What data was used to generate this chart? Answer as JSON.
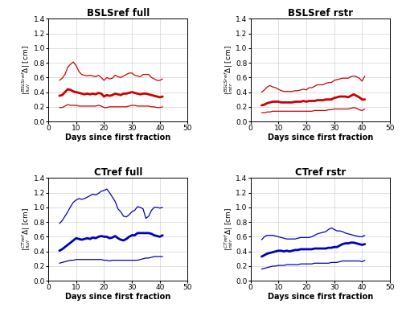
{
  "titles": [
    "BSLSref full",
    "BSLSref rstr",
    "CTref full",
    "CTref rstr"
  ],
  "xlabel": "Days since first fraction",
  "xlim": [
    0,
    50
  ],
  "ylim": [
    0,
    1.4
  ],
  "yticks": [
    0,
    0.2,
    0.4,
    0.6,
    0.8,
    1.0,
    1.2,
    1.4
  ],
  "xticks": [
    0,
    10,
    20,
    30,
    40,
    50
  ],
  "line_color_red": "#cc0000",
  "line_color_blue": "#0000bb",
  "background": "#ffffff",
  "grid_color": "#bbbbbb",
  "bsls_full_x": [
    4,
    5,
    6,
    7,
    8,
    9,
    10,
    11,
    12,
    13,
    14,
    15,
    16,
    17,
    18,
    19,
    20,
    21,
    22,
    23,
    24,
    25,
    26,
    27,
    28,
    29,
    30,
    31,
    32,
    33,
    34,
    35,
    36,
    37,
    38,
    39,
    40,
    41
  ],
  "bsls_full_median": [
    0.35,
    0.36,
    0.4,
    0.44,
    0.43,
    0.41,
    0.4,
    0.39,
    0.38,
    0.37,
    0.38,
    0.37,
    0.38,
    0.37,
    0.39,
    0.38,
    0.34,
    0.36,
    0.35,
    0.36,
    0.38,
    0.37,
    0.36,
    0.38,
    0.38,
    0.39,
    0.4,
    0.39,
    0.38,
    0.37,
    0.38,
    0.38,
    0.37,
    0.36,
    0.35,
    0.34,
    0.33,
    0.34
  ],
  "bsls_full_upper": [
    0.56,
    0.59,
    0.64,
    0.74,
    0.78,
    0.81,
    0.76,
    0.68,
    0.64,
    0.63,
    0.62,
    0.63,
    0.62,
    0.61,
    0.63,
    0.6,
    0.56,
    0.6,
    0.58,
    0.59,
    0.63,
    0.61,
    0.6,
    0.62,
    0.64,
    0.66,
    0.66,
    0.63,
    0.62,
    0.61,
    0.64,
    0.64,
    0.64,
    0.6,
    0.58,
    0.56,
    0.56,
    0.58
  ],
  "bsls_full_lower": [
    0.19,
    0.19,
    0.21,
    0.23,
    0.22,
    0.22,
    0.22,
    0.21,
    0.21,
    0.21,
    0.21,
    0.21,
    0.21,
    0.21,
    0.22,
    0.21,
    0.19,
    0.19,
    0.2,
    0.2,
    0.2,
    0.2,
    0.2,
    0.2,
    0.2,
    0.21,
    0.22,
    0.22,
    0.21,
    0.21,
    0.21,
    0.21,
    0.21,
    0.2,
    0.2,
    0.19,
    0.19,
    0.2
  ],
  "bsls_rstr_x": [
    4,
    5,
    6,
    7,
    8,
    9,
    10,
    11,
    12,
    13,
    14,
    15,
    16,
    17,
    18,
    19,
    20,
    21,
    22,
    23,
    24,
    25,
    26,
    27,
    28,
    29,
    30,
    31,
    32,
    33,
    34,
    35,
    36,
    37,
    38,
    39,
    40,
    41
  ],
  "bsls_rstr_median": [
    0.22,
    0.23,
    0.25,
    0.26,
    0.27,
    0.27,
    0.27,
    0.26,
    0.26,
    0.26,
    0.26,
    0.26,
    0.27,
    0.27,
    0.27,
    0.28,
    0.27,
    0.28,
    0.28,
    0.28,
    0.29,
    0.29,
    0.29,
    0.3,
    0.3,
    0.3,
    0.32,
    0.33,
    0.34,
    0.34,
    0.34,
    0.33,
    0.35,
    0.37,
    0.35,
    0.33,
    0.3,
    0.3
  ],
  "bsls_rstr_upper": [
    0.4,
    0.43,
    0.47,
    0.49,
    0.47,
    0.46,
    0.44,
    0.42,
    0.41,
    0.41,
    0.41,
    0.41,
    0.42,
    0.42,
    0.43,
    0.44,
    0.43,
    0.46,
    0.46,
    0.48,
    0.5,
    0.5,
    0.5,
    0.52,
    0.53,
    0.53,
    0.56,
    0.57,
    0.58,
    0.59,
    0.59,
    0.59,
    0.61,
    0.62,
    0.61,
    0.59,
    0.55,
    0.62
  ],
  "bsls_rstr_lower": [
    0.12,
    0.12,
    0.13,
    0.13,
    0.14,
    0.14,
    0.14,
    0.14,
    0.14,
    0.14,
    0.14,
    0.14,
    0.14,
    0.14,
    0.14,
    0.14,
    0.14,
    0.14,
    0.14,
    0.15,
    0.15,
    0.15,
    0.15,
    0.15,
    0.16,
    0.16,
    0.17,
    0.17,
    0.17,
    0.17,
    0.17,
    0.17,
    0.18,
    0.19,
    0.18,
    0.16,
    0.15,
    0.17
  ],
  "ct_full_x": [
    4,
    5,
    6,
    7,
    8,
    9,
    10,
    11,
    12,
    13,
    14,
    15,
    16,
    17,
    18,
    19,
    20,
    21,
    22,
    23,
    24,
    25,
    26,
    27,
    28,
    29,
    30,
    31,
    32,
    33,
    34,
    35,
    36,
    37,
    38,
    39,
    40,
    41
  ],
  "ct_full_median": [
    0.41,
    0.43,
    0.46,
    0.49,
    0.52,
    0.55,
    0.58,
    0.57,
    0.56,
    0.57,
    0.58,
    0.57,
    0.59,
    0.58,
    0.6,
    0.61,
    0.6,
    0.6,
    0.58,
    0.59,
    0.61,
    0.58,
    0.56,
    0.55,
    0.57,
    0.6,
    0.62,
    0.62,
    0.65,
    0.65,
    0.65,
    0.65,
    0.65,
    0.64,
    0.62,
    0.61,
    0.6,
    0.62
  ],
  "ct_full_upper": [
    0.78,
    0.82,
    0.88,
    0.94,
    1.01,
    1.07,
    1.1,
    1.12,
    1.11,
    1.12,
    1.14,
    1.16,
    1.18,
    1.17,
    1.19,
    1.22,
    1.23,
    1.25,
    1.2,
    1.14,
    1.08,
    0.98,
    0.94,
    0.88,
    0.87,
    0.9,
    0.94,
    0.96,
    1.01,
    1.0,
    0.98,
    0.85,
    0.88,
    0.96,
    1.0,
    1.0,
    0.99,
    1.0
  ],
  "ct_full_lower": [
    0.24,
    0.25,
    0.26,
    0.27,
    0.28,
    0.28,
    0.29,
    0.29,
    0.29,
    0.29,
    0.29,
    0.29,
    0.29,
    0.29,
    0.29,
    0.29,
    0.28,
    0.28,
    0.27,
    0.28,
    0.28,
    0.28,
    0.28,
    0.28,
    0.28,
    0.28,
    0.28,
    0.28,
    0.28,
    0.29,
    0.3,
    0.31,
    0.31,
    0.32,
    0.33,
    0.33,
    0.33,
    0.33
  ],
  "ct_rstr_x": [
    4,
    5,
    6,
    7,
    8,
    9,
    10,
    11,
    12,
    13,
    14,
    15,
    16,
    17,
    18,
    19,
    20,
    21,
    22,
    23,
    24,
    25,
    26,
    27,
    28,
    29,
    30,
    31,
    32,
    33,
    34,
    35,
    36,
    37,
    38,
    39,
    40,
    41
  ],
  "ct_rstr_median": [
    0.33,
    0.35,
    0.37,
    0.38,
    0.39,
    0.4,
    0.41,
    0.41,
    0.4,
    0.41,
    0.4,
    0.41,
    0.42,
    0.42,
    0.43,
    0.43,
    0.43,
    0.43,
    0.43,
    0.44,
    0.44,
    0.44,
    0.44,
    0.44,
    0.45,
    0.45,
    0.46,
    0.46,
    0.48,
    0.5,
    0.51,
    0.51,
    0.52,
    0.52,
    0.51,
    0.5,
    0.49,
    0.5
  ],
  "ct_rstr_upper": [
    0.56,
    0.6,
    0.62,
    0.62,
    0.62,
    0.61,
    0.6,
    0.59,
    0.58,
    0.57,
    0.57,
    0.57,
    0.57,
    0.58,
    0.59,
    0.59,
    0.59,
    0.59,
    0.6,
    0.62,
    0.64,
    0.65,
    0.66,
    0.67,
    0.7,
    0.72,
    0.7,
    0.68,
    0.68,
    0.67,
    0.65,
    0.64,
    0.63,
    0.62,
    0.61,
    0.6,
    0.6,
    0.62
  ],
  "ct_rstr_lower": [
    0.16,
    0.17,
    0.18,
    0.19,
    0.2,
    0.2,
    0.21,
    0.21,
    0.21,
    0.22,
    0.22,
    0.22,
    0.22,
    0.22,
    0.23,
    0.23,
    0.23,
    0.23,
    0.23,
    0.24,
    0.24,
    0.24,
    0.24,
    0.24,
    0.24,
    0.25,
    0.25,
    0.25,
    0.26,
    0.27,
    0.27,
    0.27,
    0.27,
    0.27,
    0.27,
    0.27,
    0.26,
    0.28
  ]
}
